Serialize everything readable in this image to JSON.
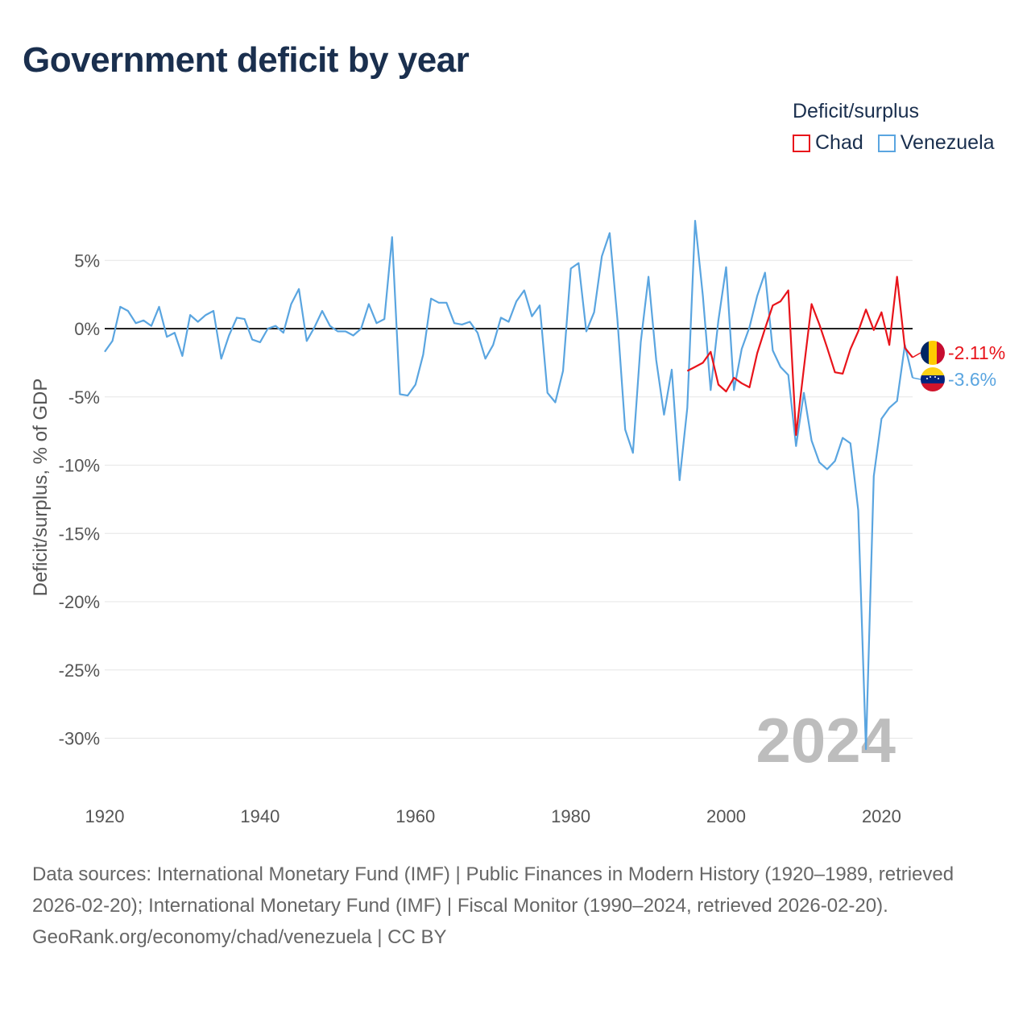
{
  "title": "Government deficit by year",
  "legend": {
    "title": "Deficit/surplus",
    "items": [
      {
        "name": "Chad",
        "color": "#e8141b"
      },
      {
        "name": "Venezuela",
        "color": "#5aa5e0"
      }
    ]
  },
  "current_year": "2024",
  "footer": {
    "sources": "Data sources: International Monetary Fund (IMF) | Public Finances in Modern History (1920–1989, retrieved 2026-02-20); International Monetary Fund (IMF) | Fiscal Monitor (1990–2024, retrieved 2026-02-20).",
    "credit": "GeoRank.org/economy/chad/venezuela | CC BY"
  },
  "chart_data": {
    "type": "line",
    "title": "Government deficit by year",
    "xlabel": "",
    "ylabel": "Deficit/surplus, % of GDP",
    "xlim": [
      1920,
      2024
    ],
    "ylim": [
      -33,
      10
    ],
    "x_ticks": [
      {
        "value": 1920,
        "label": "1920"
      },
      {
        "value": 1940,
        "label": "1940"
      },
      {
        "value": 1960,
        "label": "1960"
      },
      {
        "value": 1980,
        "label": "1980"
      },
      {
        "value": 2000,
        "label": "2000"
      },
      {
        "value": 2020,
        "label": "2020"
      }
    ],
    "y_ticks": [
      {
        "value": 5,
        "label": "5%"
      },
      {
        "value": 0,
        "label": "0%"
      },
      {
        "value": -5,
        "label": "-5%"
      },
      {
        "value": -10,
        "label": "-10%"
      },
      {
        "value": -15,
        "label": "-15%"
      },
      {
        "value": -20,
        "label": "-20%"
      },
      {
        "value": -25,
        "label": "-25%"
      },
      {
        "value": -30,
        "label": "-30%"
      }
    ],
    "grid": true,
    "series": [
      {
        "name": "Venezuela",
        "color": "#5aa5e0",
        "end_label": "-3.6%",
        "x": [
          1920,
          1921,
          1922,
          1923,
          1924,
          1925,
          1926,
          1927,
          1928,
          1929,
          1930,
          1931,
          1932,
          1933,
          1934,
          1935,
          1936,
          1937,
          1938,
          1939,
          1940,
          1941,
          1942,
          1943,
          1944,
          1945,
          1946,
          1947,
          1948,
          1949,
          1950,
          1951,
          1952,
          1953,
          1954,
          1955,
          1956,
          1957,
          1958,
          1959,
          1960,
          1961,
          1962,
          1963,
          1964,
          1965,
          1966,
          1967,
          1968,
          1969,
          1970,
          1971,
          1972,
          1973,
          1974,
          1975,
          1976,
          1977,
          1978,
          1979,
          1980,
          1981,
          1982,
          1983,
          1984,
          1985,
          1986,
          1987,
          1988,
          1989,
          1990,
          1991,
          1992,
          1993,
          1994,
          1995,
          1996,
          1997,
          1998,
          1999,
          2000,
          2001,
          2002,
          2003,
          2004,
          2005,
          2006,
          2007,
          2008,
          2009,
          2010,
          2011,
          2012,
          2013,
          2014,
          2015,
          2016,
          2017,
          2018,
          2019,
          2020,
          2021,
          2022,
          2023,
          2024
        ],
        "y": [
          -1.7,
          -0.9,
          1.6,
          1.3,
          0.4,
          0.6,
          0.2,
          1.6,
          -0.6,
          -0.3,
          -2.0,
          1.0,
          0.5,
          1.0,
          1.3,
          -2.2,
          -0.5,
          0.8,
          0.7,
          -0.8,
          -1.0,
          0.0,
          0.2,
          -0.3,
          1.8,
          2.9,
          -0.9,
          0.1,
          1.3,
          0.2,
          -0.2,
          -0.2,
          -0.5,
          0.0,
          1.8,
          0.4,
          0.7,
          6.7,
          -4.8,
          -4.9,
          -4.1,
          -1.9,
          2.2,
          1.9,
          1.9,
          0.4,
          0.3,
          0.5,
          -0.3,
          -2.2,
          -1.2,
          0.8,
          0.5,
          2.0,
          2.8,
          0.9,
          1.7,
          -4.7,
          -5.4,
          -3.1,
          4.4,
          4.8,
          -0.2,
          1.2,
          5.3,
          7.0,
          0.7,
          -7.4,
          -9.1,
          -1.0,
          3.8,
          -2.3,
          -6.3,
          -3.0,
          -11.1,
          -5.8,
          7.9,
          2.4,
          -4.5,
          0.6,
          4.5,
          -4.5,
          -1.5,
          0.1,
          2.4,
          4.1,
          -1.6,
          -2.8,
          -3.4,
          -8.6,
          -4.7,
          -8.2,
          -9.8,
          -10.3,
          -9.7,
          -8.0,
          -8.4,
          -13.3,
          -30.8,
          -10.8,
          -6.6,
          -5.8,
          -5.3,
          -1.2,
          -3.6
        ]
      },
      {
        "name": "Chad",
        "color": "#e8141b",
        "end_label": "-2.11%",
        "x": [
          1995,
          1996,
          1997,
          1998,
          1999,
          2000,
          2001,
          2002,
          2003,
          2004,
          2005,
          2006,
          2007,
          2008,
          2009,
          2010,
          2011,
          2012,
          2013,
          2014,
          2015,
          2016,
          2017,
          2018,
          2019,
          2020,
          2021,
          2022,
          2023,
          2024
        ],
        "y": [
          -3.1,
          -2.8,
          -2.5,
          -1.7,
          -4.1,
          -4.6,
          -3.6,
          -4.0,
          -4.3,
          -1.8,
          0.0,
          1.7,
          2.0,
          2.8,
          -7.8,
          -2.9,
          1.8,
          0.3,
          -1.4,
          -3.2,
          -3.3,
          -1.5,
          -0.2,
          1.4,
          -0.1,
          1.2,
          -1.2,
          3.8,
          -1.4,
          -2.11
        ]
      }
    ]
  }
}
